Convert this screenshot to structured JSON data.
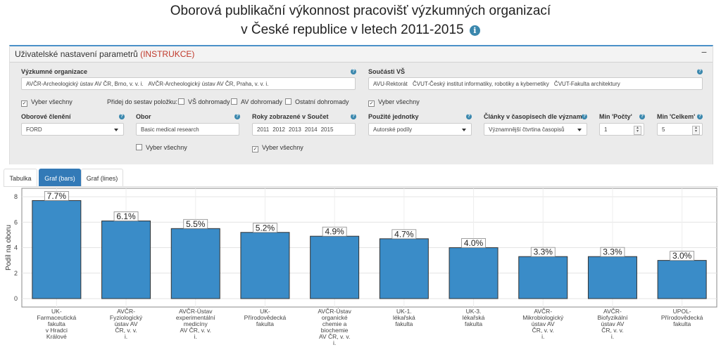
{
  "header": {
    "title_line1": "Oborová publikační výkonnost pracovišť výzkumných organizací",
    "title_line2": "v České republice v letech 2011-2015",
    "info_icon": "info-icon"
  },
  "settings": {
    "title": "Uživatelské nastavení parametrů",
    "instr": "(INSTRUKCE)",
    "collapse": "−",
    "vo_label": "Výzkumné organizace",
    "vo_values": [
      "AVČR-Archeologický ústav AV ČR, Brno, v. v. i.",
      "AVČR-Archeologický ústav AV ČR, Praha, v. v. i."
    ],
    "vs_label": "Součásti VŠ",
    "vs_values": [
      "AVU-Rektorát",
      "ČVUT-Český institut informatiky, robotiky a kybernetiky",
      "ČVUT-Fakulta architektury"
    ],
    "vyber_vsechny": "Vyber všechny",
    "pridej_label": "Přidej do sestav položku:",
    "vs_dohromady": "VŠ dohromady",
    "av_dohromady": "AV dohromady",
    "ostatni_dohromady": "Ostatní dohromady",
    "oborove_label": "Oborové členění",
    "oborove_value": "FORD",
    "obor_label": "Obor",
    "obor_value": "Basic medical research",
    "roky_label": "Roky zobrazené v Součet",
    "roky_values": [
      "2011",
      "2012",
      "2013",
      "2014",
      "2015"
    ],
    "jednotky_label": "Použité jednotky",
    "jednotky_value": "Autorské podíly",
    "clanky_label": "Články v časopisech dle významu",
    "clanky_value": "Významnější čtvrtina časopisů",
    "min_pocty_label": "Min 'Počty'",
    "min_pocty_value": "1",
    "min_celkem_label": "Min 'Celkem'",
    "min_celkem_value": "5"
  },
  "tabs": [
    "Tabulka",
    "Graf (bars)",
    "Graf (lines)"
  ],
  "colors": {
    "bar": "#3a8cc8",
    "accent": "#337ab7",
    "instr": "#c0392b"
  },
  "chart_data": {
    "type": "bar",
    "ylabel": "Podíl na oboru",
    "ylim": [
      0,
      8.4
    ],
    "yticks": [
      0,
      2,
      4,
      6,
      8
    ],
    "categories": [
      [
        "UK-",
        "Farmaceutická",
        "fakulta",
        "v Hradci",
        "Králové"
      ],
      [
        "AVČR-",
        "Fyziologický",
        "ústav AV",
        "ČR, v. v.",
        "i."
      ],
      [
        "AVČR-Ústav",
        "experimentální",
        "medicíny",
        "AV ČR, v. v.",
        "i."
      ],
      [
        "UK-",
        "Přírodovědecká",
        "fakulta"
      ],
      [
        "AVČR-Ústav",
        "organické",
        "chemie a",
        "biochemie",
        "AV ČR, v. v.",
        "i."
      ],
      [
        "UK-1.",
        "lékařská",
        "fakulta"
      ],
      [
        "UK-3.",
        "lékařská",
        "fakulta"
      ],
      [
        "AVČR-",
        "Mikrobiologický",
        "ústav AV",
        "ČR, v. v.",
        "i."
      ],
      [
        "AVČR-",
        "Biofyzikální",
        "ústav AV",
        "ČR, v. v.",
        "i."
      ],
      [
        "UPOL-",
        "Přírodovědecká",
        "fakulta"
      ]
    ],
    "values": [
      7.7,
      6.1,
      5.5,
      5.2,
      4.9,
      4.7,
      4.0,
      3.3,
      3.3,
      3.0
    ],
    "data_labels": [
      "7.7%",
      "6.1%",
      "5.5%",
      "5.2%",
      "4.9%",
      "4.7%",
      "4.0%",
      "3.3%",
      "3.3%",
      "3.0%"
    ]
  }
}
